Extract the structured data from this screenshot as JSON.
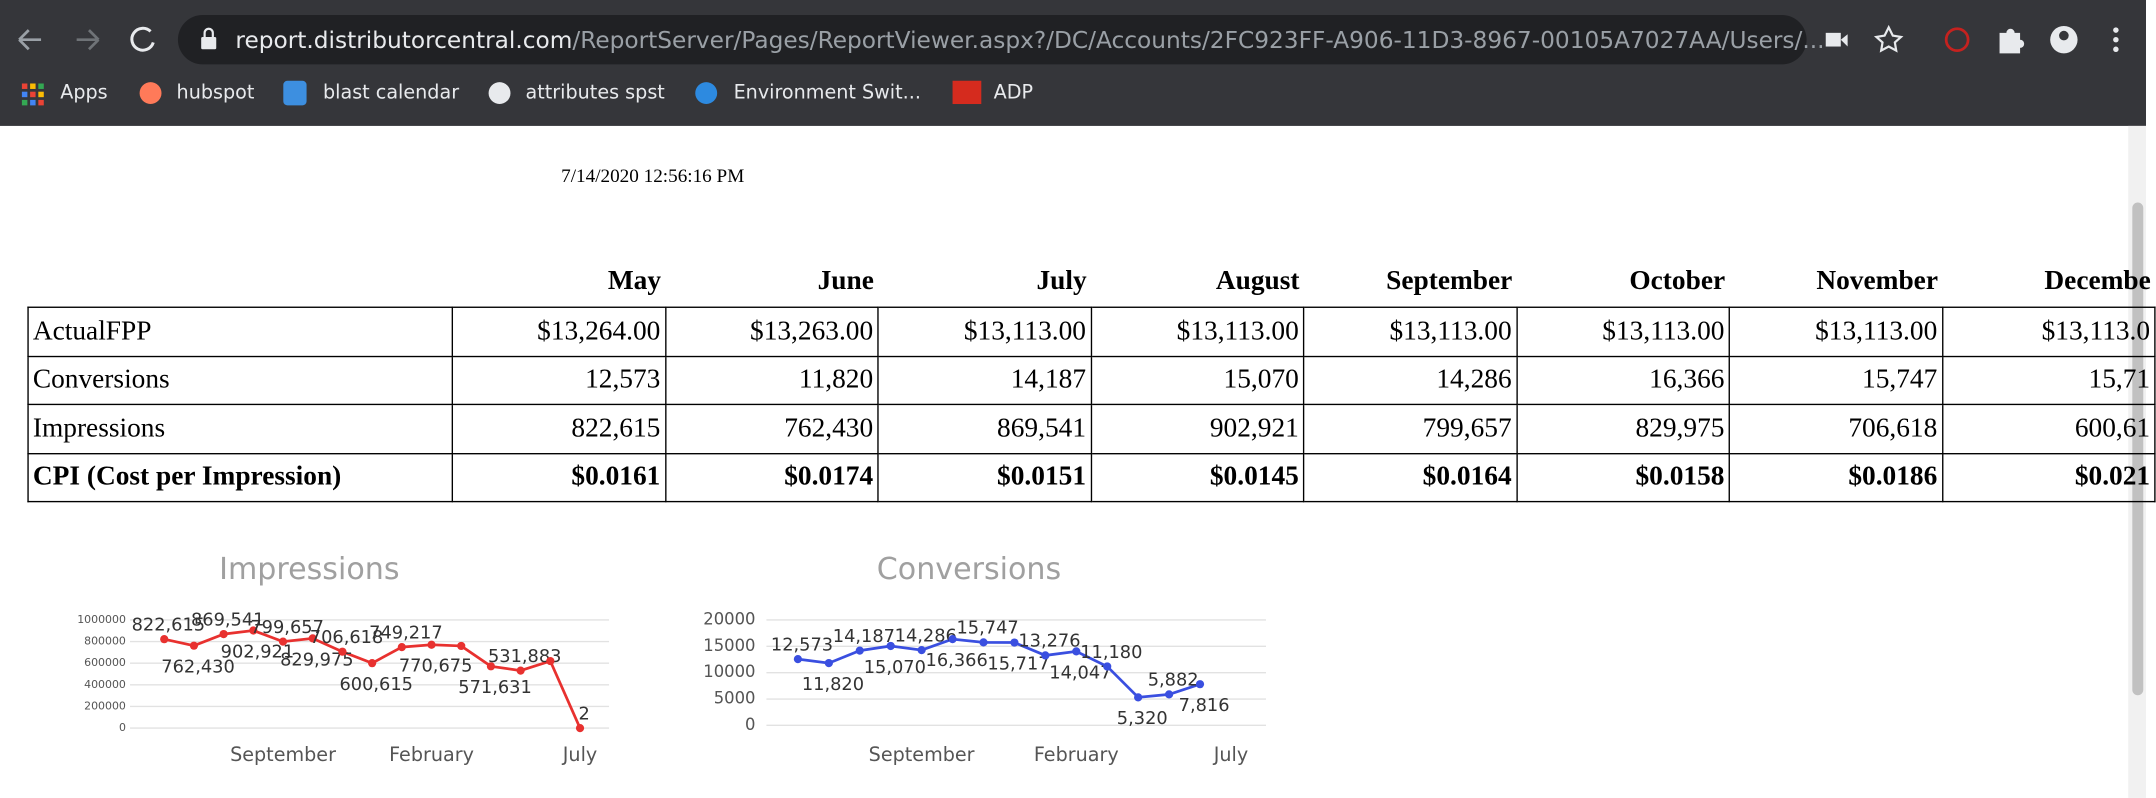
{
  "browser": {
    "url_host": "report.distributorcentral.com",
    "url_path": "/ReportServer/Pages/ReportViewer.aspx?/DC/Accounts/2FC923FF-A906-11D3-8967-00105A7027AA/Users/...",
    "bookmarks": [
      "Apps",
      "hubspot",
      "blast calendar",
      "attributes spst",
      "Environment Swit...",
      "ADP"
    ]
  },
  "report": {
    "timestamp": "7/14/2020 12:56:16 PM",
    "table": {
      "header": [
        "May",
        "June",
        "July",
        "August",
        "September",
        "October",
        "November",
        "Decembe"
      ],
      "rows": [
        [
          "ActualFPP",
          "$13,264.00",
          "$13,263.00",
          "$13,113.00",
          "$13,113.00",
          "$13,113.00",
          "$13,113.00",
          "$13,113.00",
          "$13,113.0"
        ],
        [
          "Conversions",
          "12,573",
          "11,820",
          "14,187",
          "15,070",
          "14,286",
          "16,366",
          "15,747",
          "15,71"
        ],
        [
          "Impressions",
          "822,615",
          "762,430",
          "869,541",
          "902,921",
          "799,657",
          "829,975",
          "706,618",
          "600,61"
        ],
        [
          "CPI (Cost per Impression)",
          "$0.0161",
          "$0.0174",
          "$0.0151",
          "$0.0145",
          "$0.0164",
          "$0.0158",
          "$0.0186",
          "$0.021"
        ]
      ]
    }
  },
  "chart_data": [
    {
      "type": "line",
      "title": "Impressions",
      "categories": [
        null,
        null,
        null,
        null,
        "September",
        null,
        null,
        null,
        null,
        "February",
        null,
        null,
        null,
        null,
        "July"
      ],
      "series": [
        {
          "color": "#e8312f",
          "values": [
            822615,
            762430,
            869541,
            902921,
            799657,
            829975,
            706618,
            600615,
            749217,
            770675,
            760000,
            571631,
            531883,
            620000,
            2
          ],
          "value_labels": [
            "822,615",
            "762,430",
            "869,541",
            "902,921",
            "799,657",
            "829,975",
            "706,618",
            "600,615",
            "749,217",
            "770,675",
            null,
            "571,631",
            "531,883",
            null,
            "2"
          ]
        }
      ],
      "ylim": [
        0,
        1000000
      ],
      "yticks": [
        0,
        200000,
        400000,
        600000,
        800000,
        1000000
      ],
      "grid": true
    },
    {
      "type": "line",
      "title": "Conversions",
      "categories": [
        null,
        null,
        null,
        null,
        "September",
        null,
        null,
        null,
        null,
        "February",
        null,
        null,
        null,
        null,
        "July"
      ],
      "series": [
        {
          "color": "#3a4fe0",
          "values": [
            12573,
            11820,
            14187,
            15070,
            14286,
            16366,
            15747,
            15717,
            13276,
            14047,
            11180,
            5320,
            5882,
            7816,
            null
          ],
          "value_labels": [
            "12,573",
            "11,820",
            "14,187",
            "15,070",
            "14,286",
            "16,366",
            "15,747",
            "15,717",
            "13,276",
            "14,047",
            "11,180",
            "5,320",
            "5,882",
            "7,816",
            null
          ]
        }
      ],
      "ylim": [
        0,
        20000
      ],
      "yticks": [
        0,
        5000,
        10000,
        15000,
        20000
      ],
      "grid": true
    }
  ]
}
